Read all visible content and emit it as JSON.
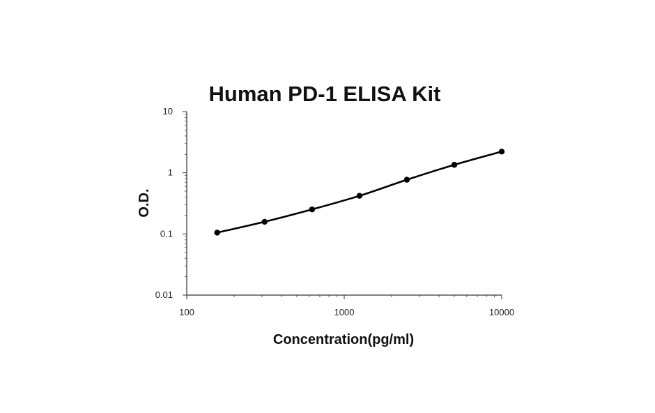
{
  "chart_data": {
    "type": "line",
    "title": "Human PD-1 ELISA Kit",
    "xlabel": "Concentration(pg/ml)",
    "ylabel": "O.D.",
    "x_scale": "log",
    "y_scale": "log",
    "xlim": [
      100,
      10000
    ],
    "ylim": [
      0.01,
      10
    ],
    "x_ticks": [
      "100",
      "1000",
      "10000"
    ],
    "y_ticks": [
      "10",
      "1",
      "0.1",
      "0.01"
    ],
    "grid": false,
    "legend": "none",
    "series": [
      {
        "x": [
          156,
          312,
          625,
          1250,
          2500,
          5000,
          10000
        ],
        "y": [
          0.105,
          0.158,
          0.252,
          0.42,
          0.77,
          1.35,
          2.22
        ]
      }
    ],
    "colors": {
      "line": "#000000",
      "marker": "#000000",
      "axis": "#333333"
    }
  }
}
